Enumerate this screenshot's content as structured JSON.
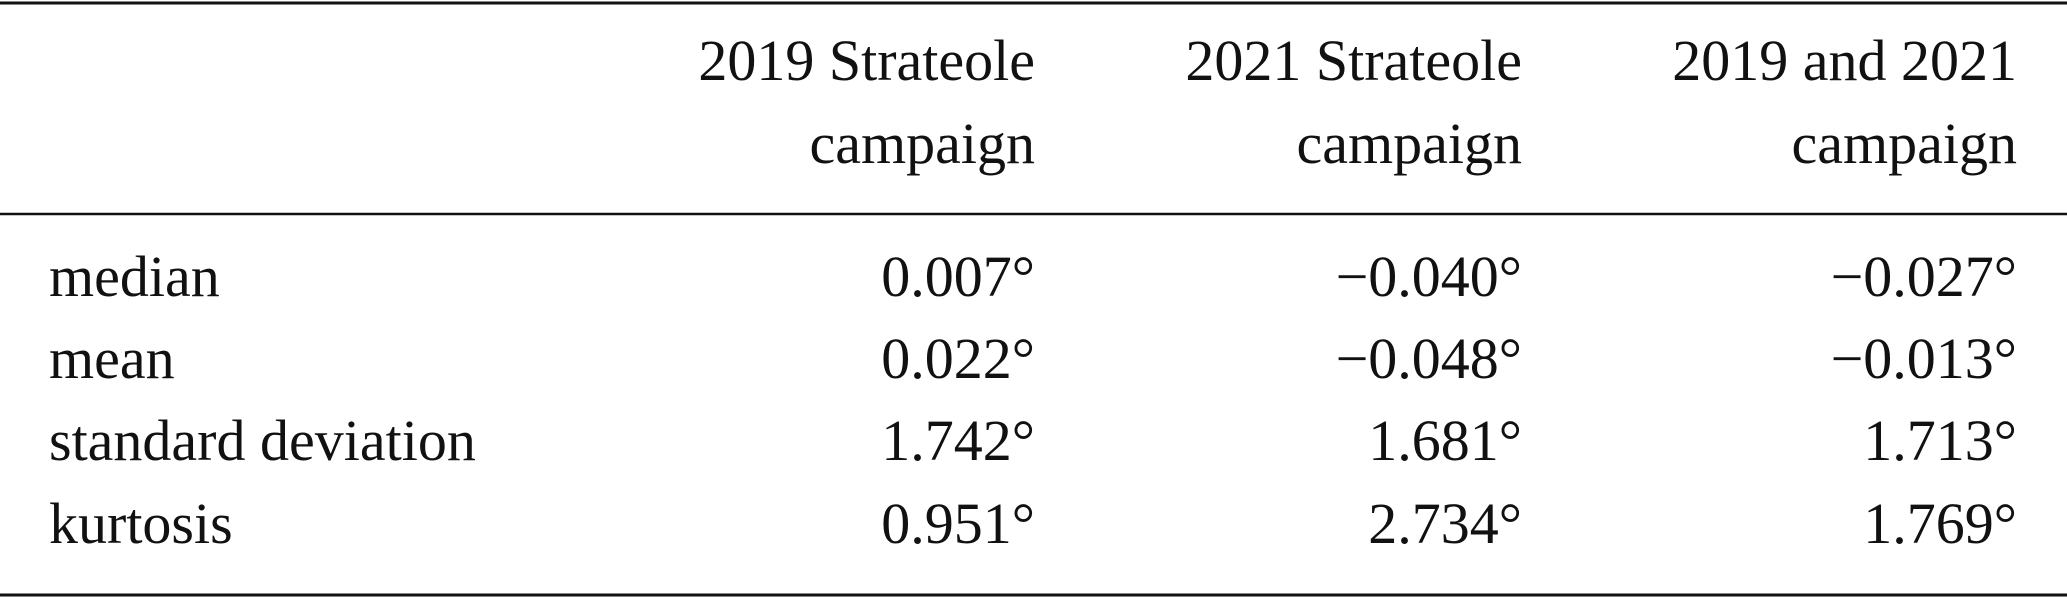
{
  "table": {
    "header": [
      [
        "2019 Strateole",
        "campaign"
      ],
      [
        "2021 Strateole",
        "campaign"
      ],
      [
        "2019 and 2021",
        "campaign"
      ]
    ],
    "rows": [
      [
        "median",
        "0.007°",
        "−0.040°",
        "−0.027°"
      ],
      [
        "mean",
        "0.022°",
        "−0.048°",
        "−0.013°"
      ],
      [
        "standard deviation",
        "1.742°",
        "1.681°",
        "1.713°"
      ],
      [
        "kurtosis",
        "0.951°",
        "2.734°",
        "1.769°"
      ]
    ]
  }
}
